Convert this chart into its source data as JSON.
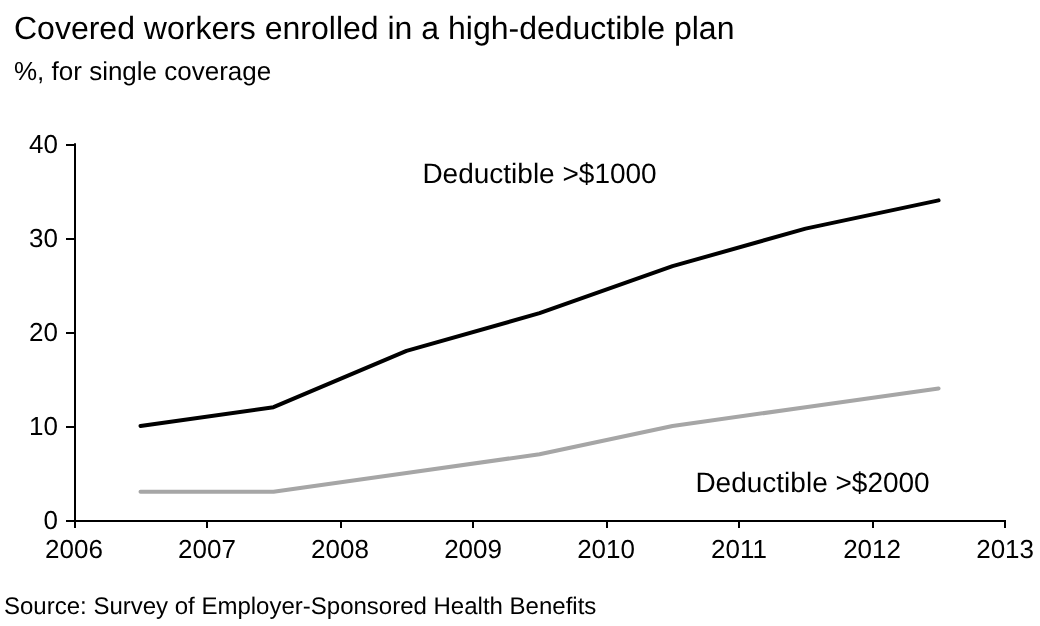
{
  "chart_data": {
    "type": "line",
    "title": "Covered workers enrolled in a high-deductible plan",
    "subtitle": "%, for single coverage",
    "x": [
      2006.5,
      2007.5,
      2008.5,
      2009.5,
      2010.5,
      2011.5,
      2012.5
    ],
    "series": [
      {
        "name": "Deductible >$1000",
        "color": "#000000",
        "values": [
          10,
          12,
          18,
          22,
          27,
          31,
          34
        ]
      },
      {
        "name": "Deductible >$2000",
        "color": "#a6a6a6",
        "values": [
          3,
          3,
          5,
          7,
          10,
          12,
          14
        ]
      }
    ],
    "xlim": [
      2006,
      2013
    ],
    "xticks": [
      2006,
      2007,
      2008,
      2009,
      2010,
      2011,
      2012,
      2013
    ],
    "ylim": [
      0,
      40
    ],
    "yticks": [
      0,
      10,
      20,
      30,
      40
    ],
    "grid": false,
    "legend": false,
    "marker": "none",
    "line_style": "solid",
    "annotations": [
      "Source: Survey of Employer-Sponsored Health Benefits"
    ]
  }
}
